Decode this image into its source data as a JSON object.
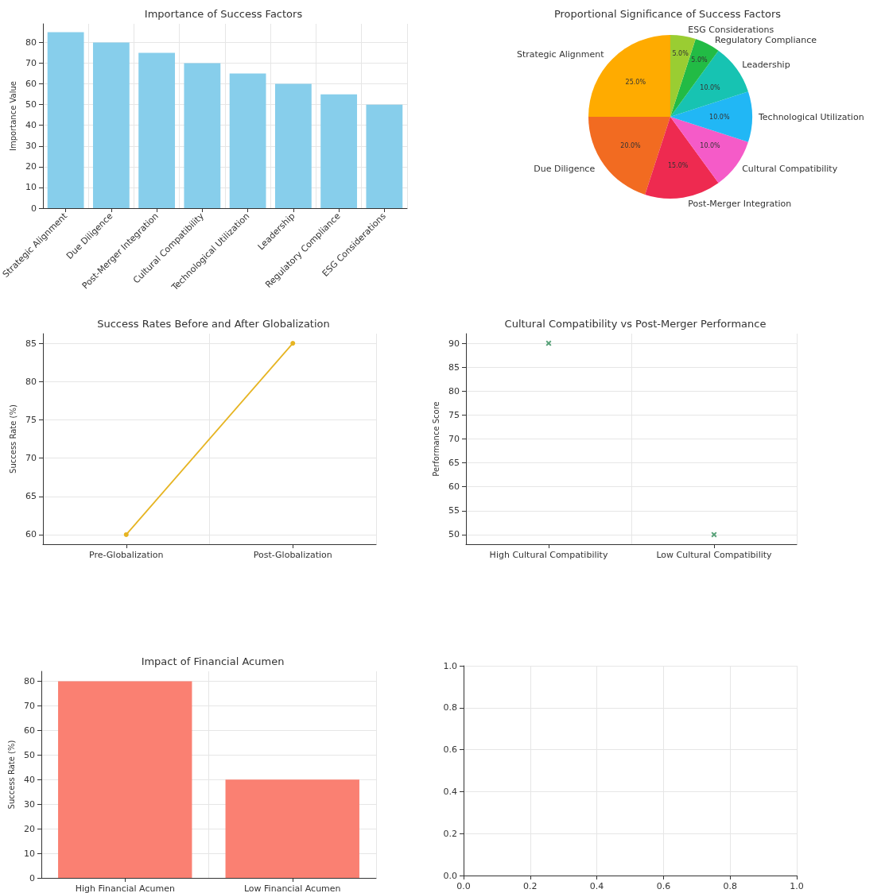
{
  "chart_data": [
    {
      "type": "bar",
      "title": "Importance of Success Factors",
      "ylabel": "Importance Value",
      "categories": [
        "Strategic Alignment",
        "Due Diligence",
        "Post-Merger Integration",
        "Cultural Compatibility",
        "Technological Utilization",
        "Leadership",
        "Regulatory Compliance",
        "ESG Considerations"
      ],
      "values": [
        85,
        80,
        75,
        70,
        65,
        60,
        55,
        50
      ],
      "color": "#87ceeb",
      "ylim": [
        0,
        89
      ],
      "yticks": [
        0,
        10,
        20,
        30,
        40,
        50,
        60,
        70,
        80
      ],
      "grid": true
    },
    {
      "type": "pie",
      "title": "Proportional Significance of Success Factors",
      "categories": [
        "Strategic Alignment",
        "Due Diligence",
        "Post-Merger Integration",
        "Cultural Compatibility",
        "Technological Utilization",
        "Leadership",
        "Regulatory Compliance",
        "ESG Considerations"
      ],
      "values": [
        25,
        20,
        15,
        10,
        10,
        10,
        5,
        5
      ],
      "value_labels": [
        "25.0%",
        "20.0%",
        "15.0%",
        "10.0%",
        "10.0%",
        "10.0%",
        "5.0%",
        "5.0%"
      ],
      "colors": [
        "#ffab00",
        "#f26b21",
        "#ee2a50",
        "#f55bc8",
        "#21b7f5",
        "#17c3b2",
        "#22bb45",
        "#9acd32"
      ]
    },
    {
      "type": "line",
      "title": "Success Rates Before and After Globalization",
      "ylabel": "Success Rate (%)",
      "categories": [
        "Pre-Globalization",
        "Post-Globalization"
      ],
      "values": [
        60,
        85
      ],
      "color": "#e6b422",
      "marker": "circle",
      "line_style": "solid",
      "ylim": [
        58.75,
        86.25
      ],
      "yticks": [
        60,
        65,
        70,
        75,
        80,
        85
      ],
      "grid": true
    },
    {
      "type": "scatter",
      "title": "Cultural Compatibility vs Post-Merger Performance",
      "ylabel": "Performance Score",
      "categories": [
        "High Cultural Compatibility",
        "Low Cultural Compatibility"
      ],
      "values": [
        90,
        50
      ],
      "color": "#2e8b57",
      "marker": "cross",
      "ylim": [
        48,
        92
      ],
      "yticks": [
        50,
        55,
        60,
        65,
        70,
        75,
        80,
        85,
        90
      ],
      "grid": true
    },
    {
      "type": "bar",
      "title": "Impact of Financial Acumen",
      "ylabel": "Success Rate (%)",
      "categories": [
        "High Financial Acumen",
        "Low Financial Acumen"
      ],
      "values": [
        80,
        40
      ],
      "color": "#fa8072",
      "ylim": [
        0,
        84
      ],
      "yticks": [
        0,
        10,
        20,
        30,
        40,
        50,
        60,
        70,
        80
      ],
      "grid": true
    },
    {
      "type": "scatter",
      "xlim": [
        0,
        1
      ],
      "xticks": [
        {
          "value": 0,
          "label": "0.0"
        },
        0.2,
        0.4,
        0.6,
        0.8,
        {
          "value": 1,
          "label": "1.0"
        }
      ],
      "ylim": [
        0,
        1
      ],
      "yticks": [
        {
          "value": 0,
          "label": "0.0"
        },
        0.2,
        0.4,
        0.6,
        0.8,
        {
          "value": 1,
          "label": "1.0"
        }
      ],
      "grid": true
    }
  ]
}
